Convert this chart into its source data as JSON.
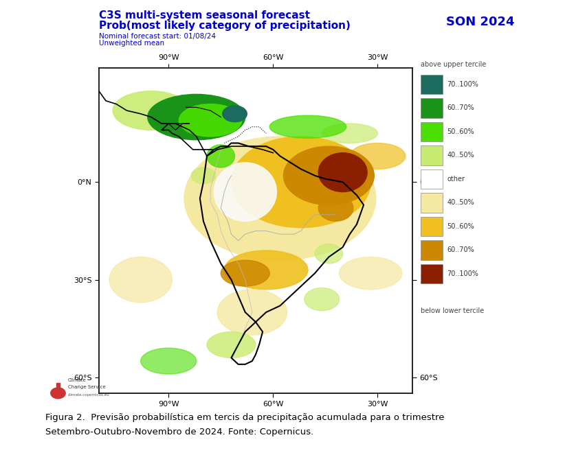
{
  "title_line1": "C3S multi-system seasonal forecast",
  "title_line2": "Prob(most likely category of precipitation)",
  "title_line3": "Nominal forecast start: 01/08/24",
  "title_line4": "Unweighted mean",
  "season_label": "SON 2024",
  "title_color": "#0000CC",
  "season_color": "#0000CC",
  "legend_title_above": "above upper tercile",
  "legend_title_below": "below lower tercile",
  "legend_items_above": [
    {
      "label": "70..100%",
      "color": "#1B6B5E"
    },
    {
      "label": "60..70%",
      "color": "#1A9418"
    },
    {
      "label": "50..60%",
      "color": "#4ADF00"
    },
    {
      "label": "40..50%",
      "color": "#C8EC70"
    }
  ],
  "legend_other": {
    "label": "other",
    "color": "#FFFFFF"
  },
  "legend_items_below": [
    {
      "label": "40..50%",
      "color": "#F5E8A0"
    },
    {
      "label": "50..60%",
      "color": "#F0C020"
    },
    {
      "label": "60..70%",
      "color": "#CC8800"
    },
    {
      "label": "70..100%",
      "color": "#8B2000"
    }
  ],
  "caption_line1": "Figura 2.  Previsão probabilística em tercis da precipitação acumulada para o trimestre",
  "caption_line2": "Setembro-Outubro-Novembro de 2024. Fonte: Copernicus.",
  "caption_color": "#000000",
  "background_color": "#FFFFFF",
  "map_xlim": [
    -110,
    -20
  ],
  "map_ylim": [
    -65,
    35
  ],
  "xticks": [
    -90,
    -60,
    -30
  ],
  "yticks": [
    0,
    -30,
    -60
  ],
  "xtick_labels": [
    "90°W",
    "60°W",
    "30°W"
  ],
  "ytick_labels": [
    "0°N",
    "30°S",
    "60°S"
  ]
}
